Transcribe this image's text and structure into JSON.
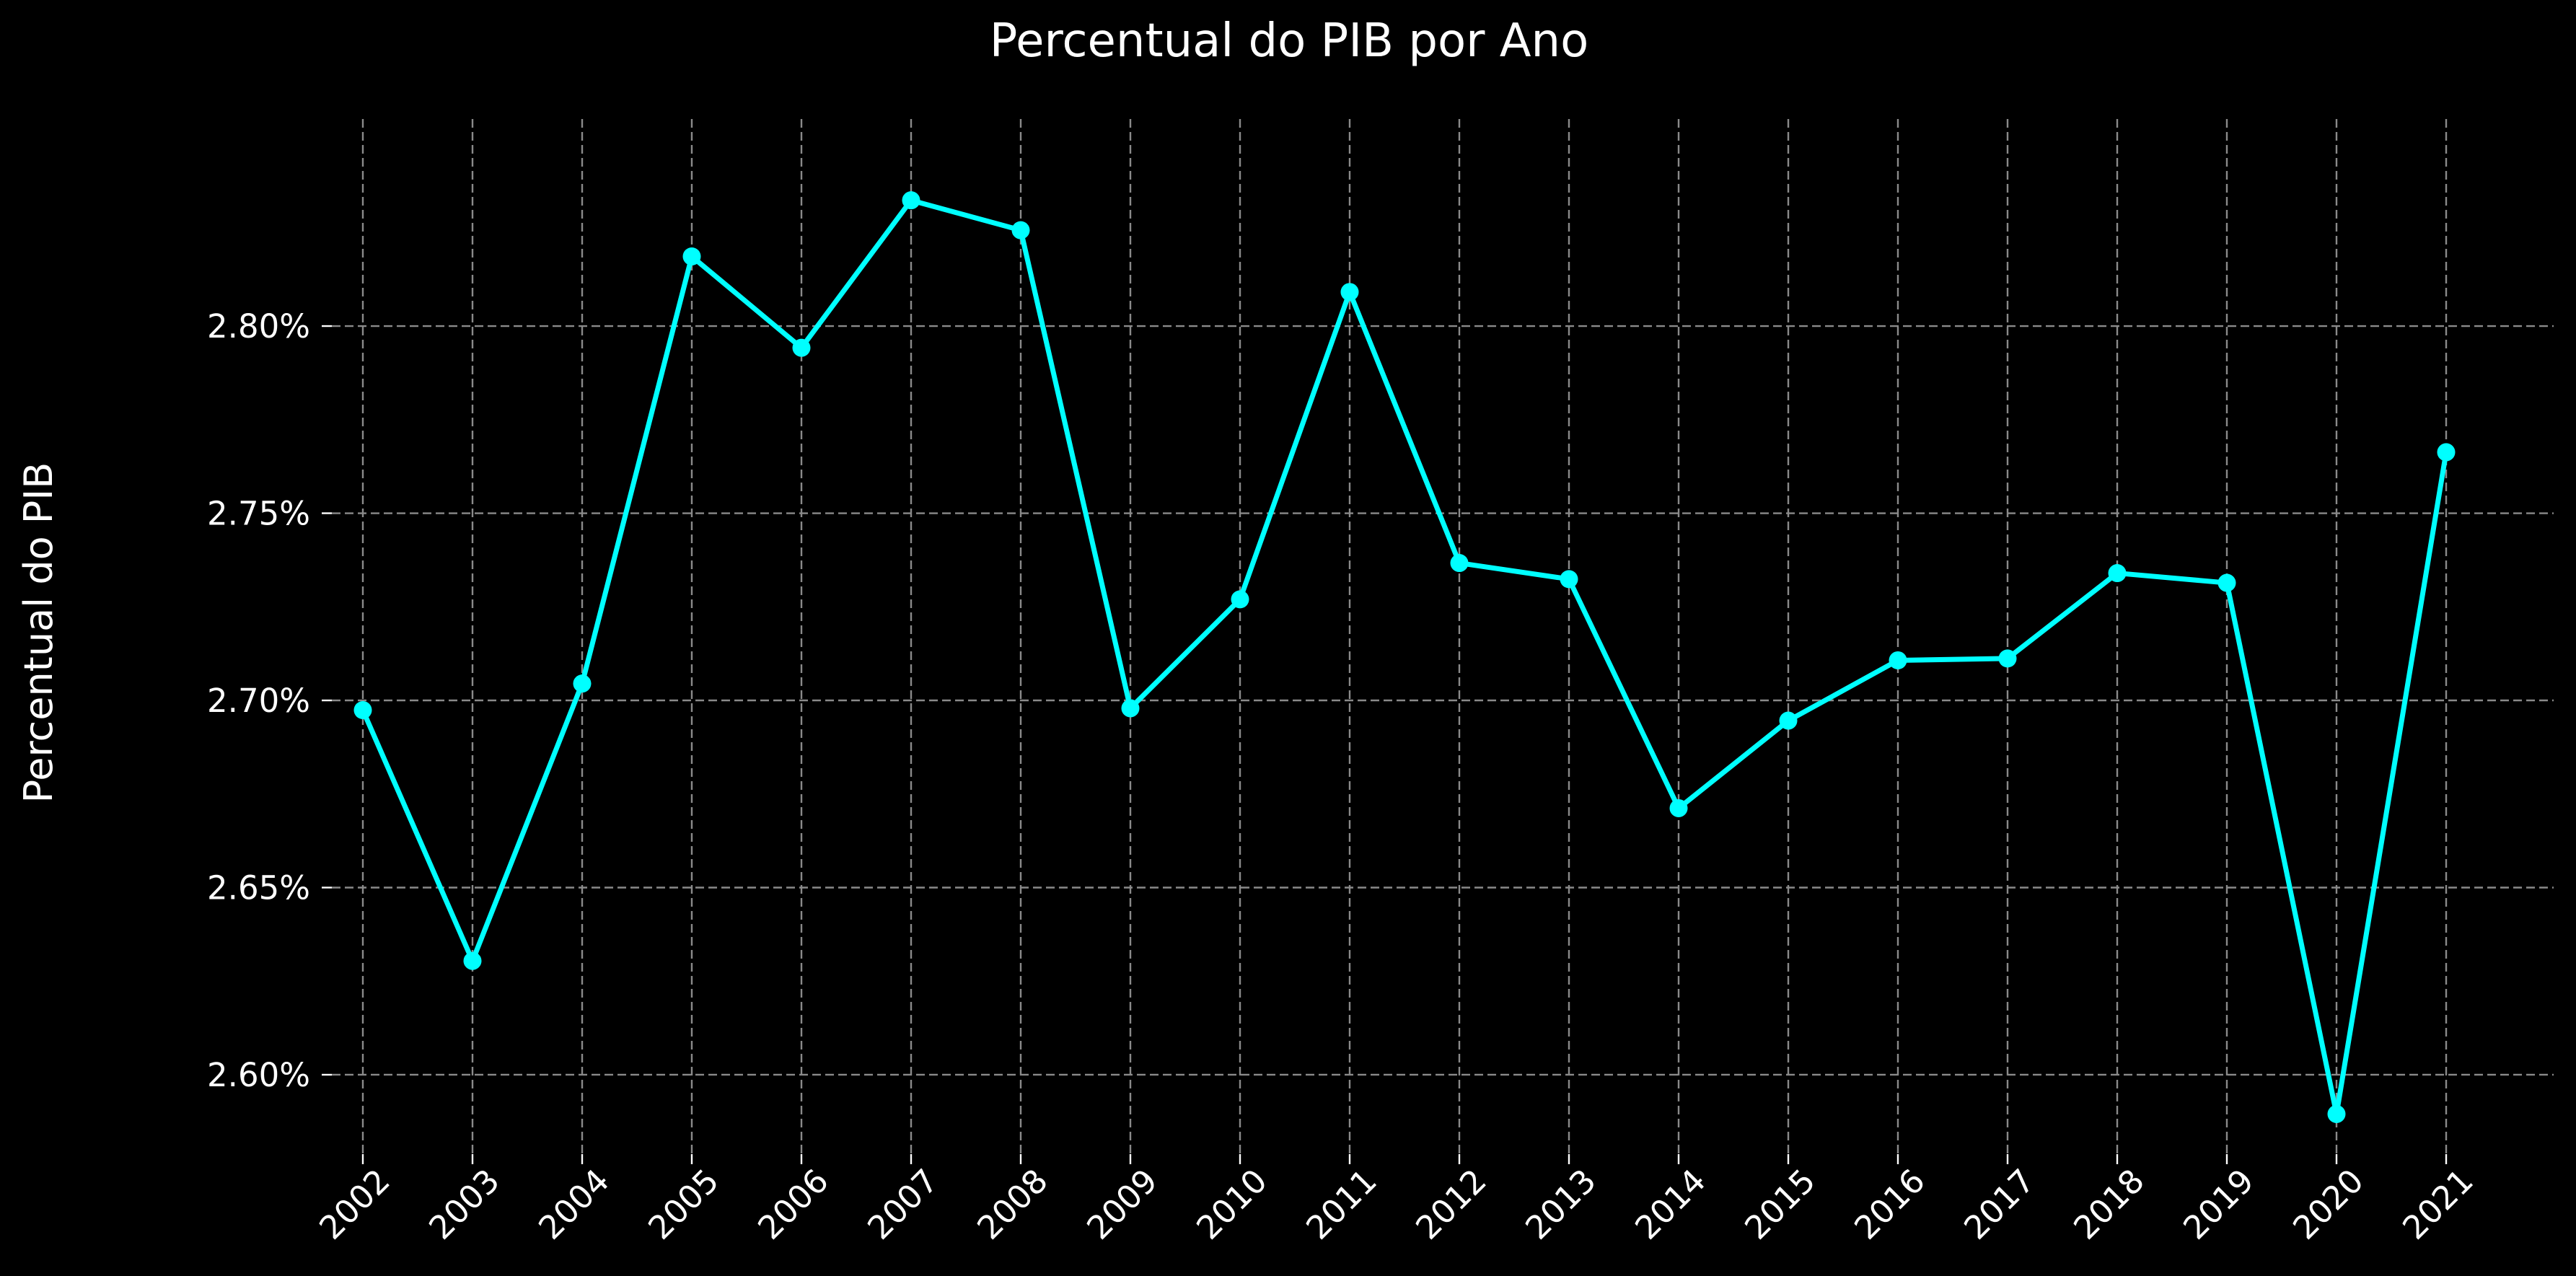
{
  "chart_data": {
    "type": "line",
    "title": "Percentual do PIB por Ano",
    "xlabel": "",
    "ylabel": "Percentual do PIB",
    "categories": [
      "2002",
      "2003",
      "2004",
      "2005",
      "2006",
      "2007",
      "2008",
      "2009",
      "2010",
      "2011",
      "2012",
      "2013",
      "2014",
      "2015",
      "2016",
      "2017",
      "2018",
      "2019",
      "2020",
      "2021"
    ],
    "series": [
      {
        "color": "#00ffff",
        "values": [
          2.6974,
          2.6304,
          2.7045,
          2.8186,
          2.7942,
          2.8336,
          2.8256,
          2.6979,
          2.727,
          2.8091,
          2.7367,
          2.7324,
          2.6712,
          2.6946,
          2.7107,
          2.7112,
          2.734,
          2.7314,
          2.5895,
          2.7663
        ]
      }
    ],
    "yticks": [
      2.6,
      2.65,
      2.7,
      2.75,
      2.8
    ],
    "ytick_labels": [
      "2.60%",
      "2.65%",
      "2.70%",
      "2.75%",
      "2.80%"
    ],
    "ylim": [
      2.5788,
      2.8582
    ],
    "grid": true,
    "x_tick_rotation": 45,
    "background": "#000000",
    "grid_color": "#8a8a8a",
    "text_color": "#ffffff"
  }
}
